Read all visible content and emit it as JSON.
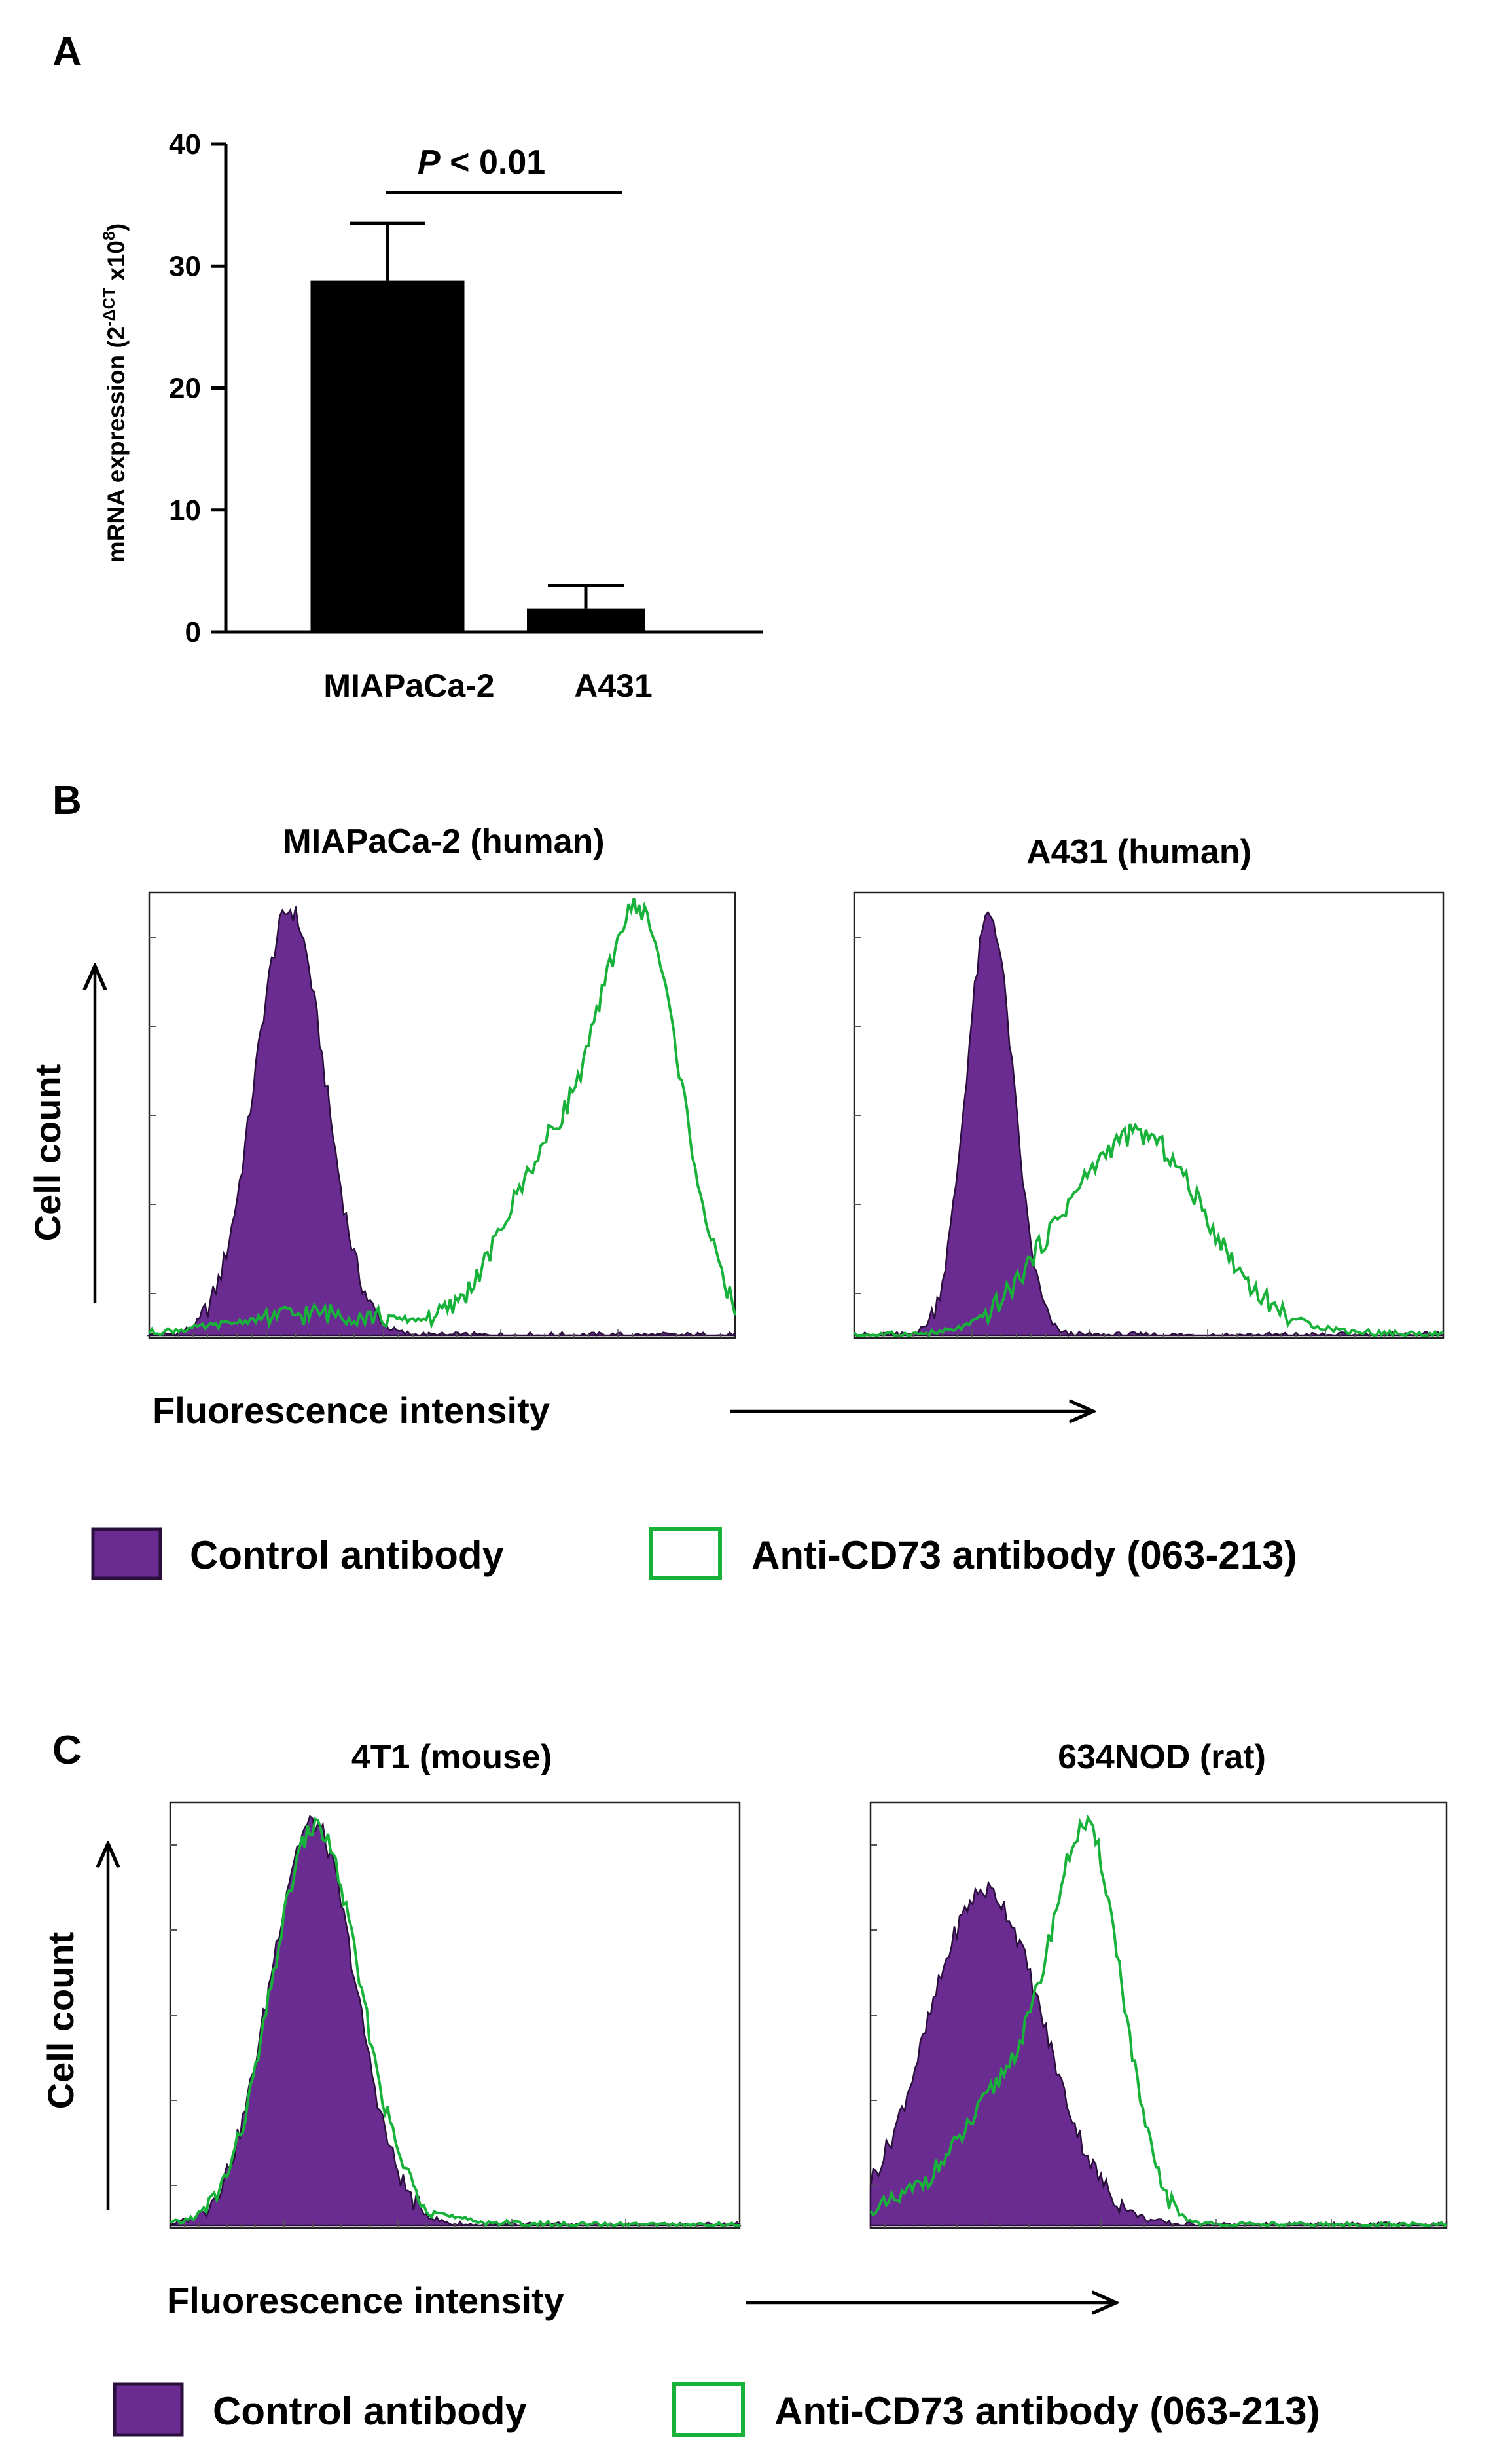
{
  "colors": {
    "control": "#6b2c91",
    "control_edge": "#2a0f3d",
    "anti": "#18b23a"
  },
  "panel_labels": {
    "a": "A",
    "b": "B",
    "c": "C"
  },
  "chart_data": [
    {
      "id": "A",
      "type": "bar",
      "categories": [
        "MIAPaCa-2",
        "A431"
      ],
      "values": [
        28.8,
        1.9
      ],
      "errors": [
        4.7,
        1.9
      ],
      "ylim": [
        0,
        40
      ],
      "yticks": [
        "0",
        "10",
        "20",
        "30",
        "40"
      ],
      "ylabel_main": "mRNA expression (2",
      "ylabel_sup1": "-ΔCT",
      "ylabel_mid": " x10",
      "ylabel_sup2": "8",
      "ylabel_end": ")",
      "significance": {
        "prefix": "P",
        "text": " < 0.01"
      }
    },
    {
      "id": "B",
      "type": "area",
      "xlabel": "Fluorescence intensity",
      "ylabel": "Cell count",
      "plots": [
        {
          "title": "MIAPaCa-2 (human)",
          "control": {
            "mu": 0.24,
            "sigma": 0.06,
            "peak": 0.97
          },
          "anti": {
            "main": {
              "mu": 0.84,
              "sigma": 0.07,
              "amp": 0.92
            },
            "shoulder": {
              "mu": 0.68,
              "sigma": 0.08,
              "amp": 0.38
            },
            "tail": {
              "mu": 0.3,
              "sigma": 0.15,
              "amp": 0.05
            }
          }
        },
        {
          "title": "A431 (human)",
          "control": {
            "mu": 0.23,
            "sigma": 0.04,
            "peak": 0.96
          },
          "anti": {
            "main": {
              "mu": 0.48,
              "sigma": 0.11,
              "amp": 0.43
            },
            "shoulder": {
              "mu": 0.32,
              "sigma": 0.06,
              "amp": 0.05
            },
            "tail": {
              "mu": 0.55,
              "sigma": 0.18,
              "amp": 0.03
            }
          }
        }
      ]
    },
    {
      "id": "C",
      "type": "area",
      "xlabel": "Fluorescence intensity",
      "ylabel": "Cell count",
      "plots": [
        {
          "title": "4T1 (mouse)",
          "control": {
            "mu": 0.25,
            "sigma": 0.075,
            "peak": 0.96
          },
          "anti": {
            "main": {
              "mu": 0.255,
              "sigma": 0.077,
              "amp": 0.93
            },
            "shoulder": {
              "mu": 0.3,
              "sigma": 0.1,
              "amp": 0.02
            },
            "tail": {
              "mu": 0.45,
              "sigma": 0.12,
              "amp": 0.01
            }
          }
        },
        {
          "title": "634NOD (rat)",
          "control": {
            "mu": 0.2,
            "sigma": 0.1,
            "peak": 0.8
          },
          "anti": {
            "main": {
              "mu": 0.38,
              "sigma": 0.06,
              "amp": 0.86
            },
            "shoulder": {
              "mu": 0.25,
              "sigma": 0.08,
              "amp": 0.32
            },
            "tail": {
              "mu": 0.1,
              "sigma": 0.08,
              "amp": 0.06
            }
          }
        }
      ]
    }
  ],
  "legend": {
    "control": "Control antibody",
    "anti": "Anti-CD73 antibody (063-213)"
  }
}
